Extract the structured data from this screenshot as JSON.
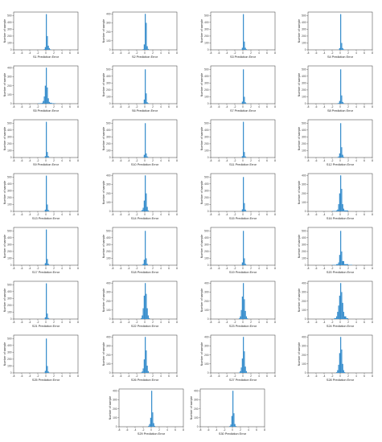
{
  "figure": {
    "ylabel": "Number of sample",
    "xticks": [
      "-8",
      "-6",
      "-4",
      "-2",
      "0",
      "2",
      "4",
      "6",
      "8"
    ],
    "bar_color": "#3a8fcd",
    "axis_color": "#333333"
  },
  "chart_data": [
    {
      "type": "bar",
      "xlabel": "S1 Prediction Error",
      "xlim": [
        -8,
        8
      ],
      "ylim": [
        0,
        550
      ],
      "yticks": [
        0,
        100,
        200,
        300,
        400,
        500
      ],
      "bins": [
        -0.5,
        -0.25,
        0,
        0.25,
        0.5,
        0.75,
        1.0
      ],
      "values": [
        10,
        40,
        520,
        200,
        60,
        25,
        8
      ]
    },
    {
      "type": "bar",
      "xlabel": "S2 Prediction Error",
      "xlim": [
        -8,
        8
      ],
      "ylim": [
        0,
        420
      ],
      "yticks": [
        0,
        100,
        200,
        300,
        400
      ],
      "bins": [
        -0.5,
        -0.25,
        0,
        0.25,
        0.5,
        0.75
      ],
      "values": [
        8,
        60,
        400,
        300,
        40,
        10
      ]
    },
    {
      "type": "bar",
      "xlabel": "S3 Prediction Error",
      "xlim": [
        -8,
        8
      ],
      "ylim": [
        0,
        550
      ],
      "yticks": [
        0,
        100,
        200,
        300,
        400,
        500
      ],
      "bins": [
        -0.5,
        -0.25,
        0,
        0.25,
        0.5,
        0.75
      ],
      "values": [
        5,
        30,
        520,
        120,
        30,
        10
      ]
    },
    {
      "type": "bar",
      "xlabel": "S4 Prediction Error",
      "xlim": [
        -8,
        8
      ],
      "ylim": [
        0,
        550
      ],
      "yticks": [
        0,
        100,
        200,
        300,
        400,
        500
      ],
      "bins": [
        -0.5,
        -0.25,
        0,
        0.25,
        0.5,
        0.75
      ],
      "values": [
        5,
        25,
        520,
        100,
        25,
        8
      ]
    },
    {
      "type": "bar",
      "xlabel": "S5 Prediction Error",
      "xlim": [
        -8,
        8
      ],
      "ylim": [
        0,
        420
      ],
      "yticks": [
        0,
        100,
        200,
        300,
        400
      ],
      "bins": [
        -2.0,
        -1.5,
        -1.0,
        -0.75,
        -0.5,
        -0.25,
        0,
        0.25,
        0.5,
        0.75,
        1.0,
        1.5,
        2.0
      ],
      "values": [
        3,
        5,
        10,
        30,
        80,
        200,
        400,
        180,
        60,
        20,
        10,
        5,
        3
      ]
    },
    {
      "type": "bar",
      "xlabel": "S6 Prediction Error",
      "xlim": [
        -8,
        8
      ],
      "ylim": [
        0,
        550
      ],
      "yticks": [
        0,
        100,
        200,
        300,
        400,
        500
      ],
      "bins": [
        -0.5,
        -0.25,
        0,
        0.25,
        0.5,
        0.75
      ],
      "values": [
        5,
        60,
        500,
        150,
        20,
        8
      ]
    },
    {
      "type": "bar",
      "xlabel": "S7 Prediction Error",
      "xlim": [
        -8,
        8
      ],
      "ylim": [
        0,
        550
      ],
      "yticks": [
        0,
        100,
        200,
        300,
        400,
        500
      ],
      "bins": [
        -0.5,
        -0.25,
        0,
        0.25,
        0.5,
        0.75
      ],
      "values": [
        5,
        30,
        500,
        100,
        20,
        5
      ]
    },
    {
      "type": "bar",
      "xlabel": "S8 Prediction Error",
      "xlim": [
        -8,
        8
      ],
      "ylim": [
        0,
        550
      ],
      "yticks": [
        0,
        100,
        200,
        300,
        400,
        500
      ],
      "bins": [
        -0.75,
        -0.5,
        -0.25,
        0,
        0.25,
        0.5,
        0.75
      ],
      "values": [
        5,
        10,
        40,
        500,
        120,
        25,
        8
      ]
    },
    {
      "type": "bar",
      "xlabel": "S9 Prediction Error",
      "xlim": [
        -8,
        8
      ],
      "ylim": [
        0,
        550
      ],
      "yticks": [
        0,
        100,
        200,
        300,
        400,
        500
      ],
      "bins": [
        -0.5,
        -0.25,
        0,
        0.25,
        0.5,
        0.75
      ],
      "values": [
        5,
        20,
        520,
        80,
        20,
        5
      ]
    },
    {
      "type": "bar",
      "xlabel": "S10 Prediction Error",
      "xlim": [
        -8,
        8
      ],
      "ylim": [
        0,
        550
      ],
      "yticks": [
        0,
        100,
        200,
        300,
        400,
        500
      ],
      "bins": [
        -0.5,
        -0.25,
        0,
        0.25,
        0.5,
        0.75
      ],
      "values": [
        5,
        40,
        500,
        60,
        15,
        5
      ]
    },
    {
      "type": "bar",
      "xlabel": "S11 Prediction Error",
      "xlim": [
        -8,
        8
      ],
      "ylim": [
        0,
        550
      ],
      "yticks": [
        0,
        100,
        200,
        300,
        400,
        500
      ],
      "bins": [
        -0.5,
        -0.25,
        0,
        0.25,
        0.5,
        0.75
      ],
      "values": [
        4,
        20,
        520,
        80,
        15,
        4
      ]
    },
    {
      "type": "bar",
      "xlabel": "S12 Prediction Error",
      "xlim": [
        -8,
        8
      ],
      "ylim": [
        0,
        550
      ],
      "yticks": [
        0,
        100,
        200,
        300,
        400,
        500
      ],
      "bins": [
        -0.75,
        -0.5,
        -0.25,
        0,
        0.25,
        0.5,
        0.75
      ],
      "values": [
        5,
        15,
        60,
        500,
        150,
        40,
        10
      ]
    },
    {
      "type": "bar",
      "xlabel": "S13 Prediction Error",
      "xlim": [
        -8,
        8
      ],
      "ylim": [
        0,
        550
      ],
      "yticks": [
        0,
        100,
        200,
        300,
        400,
        500
      ],
      "bins": [
        -0.5,
        -0.25,
        0,
        0.25,
        0.5,
        0.75
      ],
      "values": [
        5,
        25,
        520,
        100,
        20,
        5
      ]
    },
    {
      "type": "bar",
      "xlabel": "S14 Prediction Error",
      "xlim": [
        -8,
        8
      ],
      "ylim": [
        0,
        420
      ],
      "yticks": [
        0,
        100,
        200,
        300,
        400
      ],
      "bins": [
        -1.0,
        -0.75,
        -0.5,
        -0.25,
        0,
        0.25,
        0.5,
        0.75
      ],
      "values": [
        5,
        15,
        40,
        120,
        400,
        200,
        50,
        10
      ]
    },
    {
      "type": "bar",
      "xlabel": "S15 Prediction Error",
      "xlim": [
        -8,
        8
      ],
      "ylim": [
        0,
        550
      ],
      "yticks": [
        0,
        100,
        200,
        300,
        400,
        500
      ],
      "bins": [
        -0.5,
        -0.25,
        0,
        0.25,
        0.5,
        0.75
      ],
      "values": [
        5,
        30,
        500,
        120,
        25,
        5
      ]
    },
    {
      "type": "bar",
      "xlabel": "S16 Prediction Error",
      "xlim": [
        -8,
        8
      ],
      "ylim": [
        0,
        420
      ],
      "yticks": [
        0,
        100,
        200,
        300,
        400
      ],
      "bins": [
        -2.0,
        -1.0,
        -0.75,
        -0.5,
        -0.25,
        0,
        0.25,
        0.5,
        0.75,
        1.0
      ],
      "values": [
        5,
        10,
        20,
        80,
        200,
        400,
        250,
        80,
        30,
        10
      ]
    },
    {
      "type": "bar",
      "xlabel": "S17 Prediction Error",
      "xlim": [
        -8,
        8
      ],
      "ylim": [
        0,
        550
      ],
      "yticks": [
        0,
        100,
        200,
        300,
        400,
        500
      ],
      "bins": [
        -0.5,
        -0.25,
        0,
        0.25,
        0.5,
        0.75
      ],
      "values": [
        5,
        30,
        520,
        90,
        20,
        5
      ]
    },
    {
      "type": "bar",
      "xlabel": "S18 Prediction Error",
      "xlim": [
        -8,
        8
      ],
      "ylim": [
        0,
        550
      ],
      "yticks": [
        0,
        100,
        200,
        300,
        400,
        500
      ],
      "bins": [
        -0.75,
        -0.5,
        -0.25,
        0,
        0.25,
        0.5
      ],
      "values": [
        5,
        20,
        80,
        500,
        100,
        20
      ]
    },
    {
      "type": "bar",
      "xlabel": "S19 Prediction Error",
      "xlim": [
        -8,
        8
      ],
      "ylim": [
        0,
        550
      ],
      "yticks": [
        0,
        100,
        200,
        300,
        400,
        500
      ],
      "bins": [
        -0.5,
        -0.25,
        0,
        0.25,
        0.5,
        0.75
      ],
      "values": [
        5,
        40,
        500,
        100,
        20,
        5
      ]
    },
    {
      "type": "bar",
      "xlabel": "S20 Prediction Error",
      "xlim": [
        -8,
        8
      ],
      "ylim": [
        0,
        550
      ],
      "yticks": [
        0,
        100,
        200,
        300,
        400,
        500
      ],
      "bins": [
        -2.0,
        -1.0,
        -0.5,
        -0.25,
        0,
        0.25,
        0.5,
        1.0,
        2.0
      ],
      "values": [
        5,
        15,
        40,
        150,
        500,
        200,
        60,
        15,
        5
      ]
    },
    {
      "type": "bar",
      "xlabel": "S21 Prediction Error",
      "xlim": [
        -8,
        8
      ],
      "ylim": [
        0,
        550
      ],
      "yticks": [
        0,
        100,
        200,
        300,
        400,
        500
      ],
      "bins": [
        -0.5,
        -0.25,
        0,
        0.25,
        0.5,
        0.75
      ],
      "values": [
        5,
        25,
        520,
        80,
        15,
        5
      ]
    },
    {
      "type": "bar",
      "xlabel": "S22 Prediction Error",
      "xlim": [
        -8,
        8
      ],
      "ylim": [
        0,
        420
      ],
      "yticks": [
        0,
        100,
        200,
        300,
        400
      ],
      "bins": [
        -1.0,
        -0.75,
        -0.5,
        -0.25,
        0,
        0.25,
        0.5,
        0.75,
        1.0
      ],
      "values": [
        10,
        40,
        120,
        260,
        400,
        280,
        120,
        40,
        10
      ]
    },
    {
      "type": "bar",
      "xlabel": "S23 Prediction Error",
      "xlim": [
        -8,
        8
      ],
      "ylim": [
        0,
        420
      ],
      "yticks": [
        0,
        100,
        200,
        300,
        400
      ],
      "bins": [
        -1.0,
        -0.75,
        -0.5,
        -0.25,
        0,
        0.25,
        0.5,
        0.75,
        1.0
      ],
      "values": [
        8,
        30,
        100,
        250,
        400,
        220,
        90,
        30,
        8
      ]
    },
    {
      "type": "bar",
      "xlabel": "S24 Prediction Error",
      "xlim": [
        -8,
        8
      ],
      "ylim": [
        0,
        420
      ],
      "yticks": [
        0,
        100,
        200,
        300,
        400
      ],
      "bins": [
        -1.5,
        -1.0,
        -0.75,
        -0.5,
        -0.25,
        0,
        0.25,
        0.5,
        0.75,
        1.0,
        1.5
      ],
      "values": [
        10,
        30,
        80,
        150,
        260,
        400,
        300,
        180,
        80,
        30,
        10
      ]
    },
    {
      "type": "bar",
      "xlabel": "S25 Prediction Error",
      "xlim": [
        -8,
        8
      ],
      "ylim": [
        0,
        550
      ],
      "yticks": [
        0,
        100,
        200,
        300,
        400,
        500
      ],
      "bins": [
        -0.5,
        -0.25,
        0,
        0.25,
        0.5,
        0.75
      ],
      "values": [
        5,
        30,
        500,
        100,
        20,
        5
      ]
    },
    {
      "type": "bar",
      "xlabel": "S26 Prediction Error",
      "xlim": [
        -8,
        8
      ],
      "ylim": [
        0,
        420
      ],
      "yticks": [
        0,
        100,
        200,
        300,
        400
      ],
      "bins": [
        -1.0,
        -0.75,
        -0.5,
        -0.25,
        0,
        0.25,
        0.5,
        0.75
      ],
      "values": [
        5,
        15,
        50,
        150,
        400,
        250,
        80,
        20
      ]
    },
    {
      "type": "bar",
      "xlabel": "S27 Prediction Error",
      "xlim": [
        -8,
        8
      ],
      "ylim": [
        0,
        420
      ],
      "yticks": [
        0,
        100,
        200,
        300,
        400
      ],
      "bins": [
        -1.0,
        -0.75,
        -0.5,
        -0.25,
        0,
        0.25,
        0.5,
        0.75
      ],
      "values": [
        5,
        20,
        60,
        160,
        400,
        240,
        70,
        20
      ]
    },
    {
      "type": "bar",
      "xlabel": "S28 Prediction Error",
      "xlim": [
        -8,
        8
      ],
      "ylim": [
        0,
        420
      ],
      "yticks": [
        0,
        100,
        200,
        300,
        400
      ],
      "bins": [
        -1.0,
        -0.75,
        -0.5,
        -0.25,
        0,
        0.25,
        0.5,
        0.75,
        1.0
      ],
      "values": [
        8,
        30,
        90,
        220,
        400,
        260,
        100,
        30,
        8
      ]
    },
    {
      "type": "bar",
      "xlabel": "S29 Prediction Error",
      "xlim": [
        -8,
        8
      ],
      "ylim": [
        0,
        420
      ],
      "yticks": [
        0,
        100,
        200,
        300,
        400
      ],
      "bins": [
        -0.75,
        -0.5,
        -0.25,
        0,
        0.25,
        0.5,
        0.75
      ],
      "values": [
        10,
        30,
        100,
        400,
        160,
        40,
        10
      ]
    },
    {
      "type": "bar",
      "xlabel": "S30 Prediction Error",
      "xlim": [
        -8,
        8
      ],
      "ylim": [
        0,
        420
      ],
      "yticks": [
        0,
        100,
        200,
        300,
        400
      ],
      "bins": [
        -0.75,
        -0.5,
        -0.25,
        0,
        0.25,
        0.5,
        0.75
      ],
      "values": [
        8,
        25,
        120,
        400,
        150,
        30,
        8
      ]
    }
  ]
}
